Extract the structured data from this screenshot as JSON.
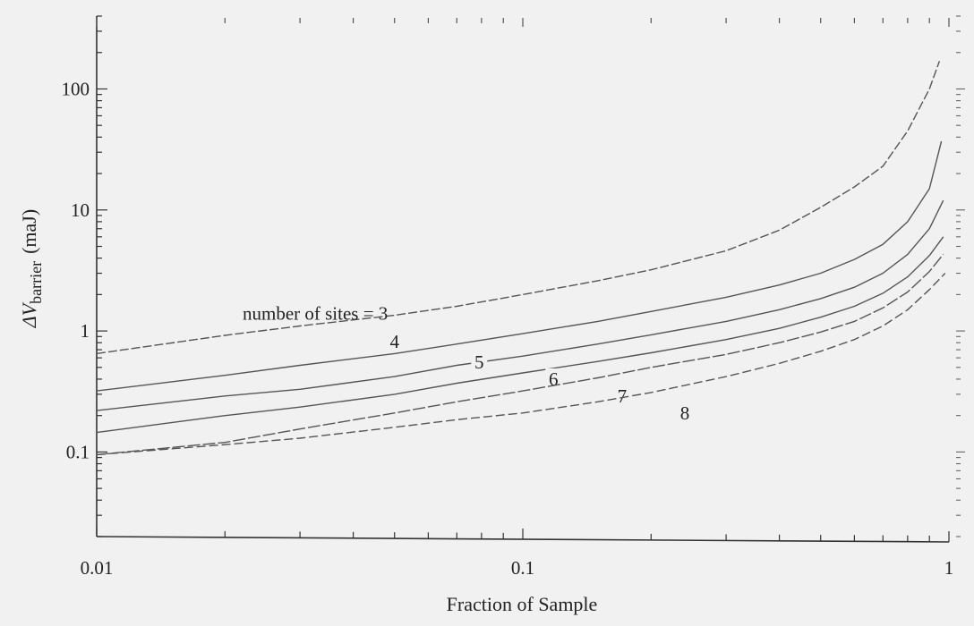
{
  "chart_data": {
    "type": "line",
    "title": "",
    "xlabel": "Fraction of Sample",
    "ylabel_main": "ΔV",
    "ylabel_sub": "barrier",
    "ylabel_unit": "(maJ)",
    "xscale": "log",
    "yscale": "log",
    "xlim": [
      0.01,
      1
    ],
    "ylim": [
      0.02,
      400
    ],
    "x_tick_labels": [
      "0.01",
      "0.1",
      "1"
    ],
    "y_tick_labels": [
      "0.1",
      "1",
      "10",
      "100"
    ],
    "grid": false,
    "legend": "none",
    "series": [
      {
        "name": "number of sites = 3",
        "label": "number of sites = 3",
        "x": [
          0.01,
          0.02,
          0.03,
          0.05,
          0.07,
          0.1,
          0.15,
          0.2,
          0.3,
          0.4,
          0.5,
          0.6,
          0.7,
          0.8,
          0.9,
          0.95
        ],
        "y": [
          0.65,
          0.92,
          1.1,
          1.35,
          1.6,
          2.0,
          2.6,
          3.2,
          4.6,
          6.8,
          10.5,
          15.5,
          23,
          45,
          100,
          170
        ]
      },
      {
        "name": "4",
        "label": "4",
        "x": [
          0.01,
          0.02,
          0.03,
          0.05,
          0.07,
          0.1,
          0.15,
          0.2,
          0.3,
          0.4,
          0.5,
          0.6,
          0.7,
          0.8,
          0.9,
          0.96
        ],
        "y": [
          0.32,
          0.43,
          0.52,
          0.65,
          0.78,
          0.95,
          1.2,
          1.45,
          1.9,
          2.4,
          3.0,
          3.9,
          5.2,
          8.0,
          15,
          37
        ]
      },
      {
        "name": "5",
        "label": "5",
        "x": [
          0.01,
          0.02,
          0.03,
          0.05,
          0.07,
          0.1,
          0.15,
          0.2,
          0.3,
          0.4,
          0.5,
          0.6,
          0.7,
          0.8,
          0.9,
          0.97
        ],
        "y": [
          0.22,
          0.29,
          0.33,
          0.42,
          0.52,
          0.62,
          0.78,
          0.93,
          1.2,
          1.5,
          1.85,
          2.3,
          3.0,
          4.3,
          7.0,
          12
        ]
      },
      {
        "name": "6",
        "label": "6",
        "x": [
          0.01,
          0.02,
          0.03,
          0.05,
          0.07,
          0.1,
          0.15,
          0.2,
          0.3,
          0.4,
          0.5,
          0.6,
          0.7,
          0.8,
          0.9,
          0.97
        ],
        "y": [
          0.145,
          0.2,
          0.235,
          0.3,
          0.37,
          0.45,
          0.56,
          0.66,
          0.85,
          1.05,
          1.3,
          1.6,
          2.05,
          2.8,
          4.2,
          6.0
        ]
      },
      {
        "name": "7",
        "label": "7",
        "x": [
          0.01,
          0.02,
          0.03,
          0.05,
          0.07,
          0.1,
          0.15,
          0.2,
          0.3,
          0.4,
          0.5,
          0.6,
          0.7,
          0.8,
          0.9,
          0.97
        ],
        "y": [
          0.095,
          0.12,
          0.155,
          0.21,
          0.26,
          0.32,
          0.41,
          0.5,
          0.64,
          0.8,
          0.98,
          1.2,
          1.55,
          2.1,
          3.1,
          4.3
        ]
      },
      {
        "name": "8",
        "label": "8",
        "x": [
          0.01,
          0.02,
          0.03,
          0.05,
          0.07,
          0.1,
          0.15,
          0.2,
          0.3,
          0.4,
          0.5,
          0.6,
          0.7,
          0.8,
          0.9,
          0.98
        ],
        "y": [
          0.095,
          0.115,
          0.13,
          0.16,
          0.185,
          0.21,
          0.26,
          0.31,
          0.42,
          0.54,
          0.68,
          0.85,
          1.1,
          1.5,
          2.2,
          3.0
        ]
      }
    ]
  }
}
